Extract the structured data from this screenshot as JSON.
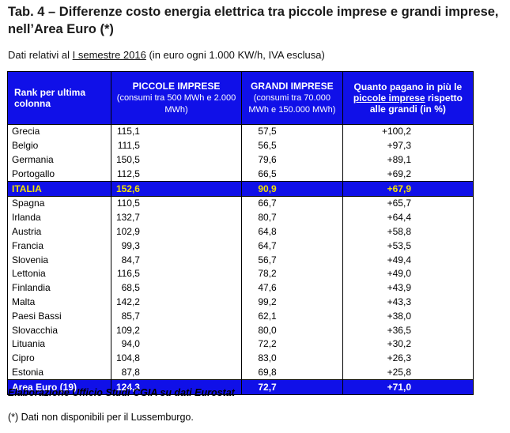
{
  "title": "Tab. 4 – Differenze costo energia elettrica tra piccole imprese e grandi imprese, nell’Area Euro (*)",
  "subtitle": {
    "prefix": "Dati relativi al ",
    "underlined": "I semestre 2016",
    "suffix": " (in euro ogni 1.000 KW/h, IVA esclusa)"
  },
  "table": {
    "headers": {
      "rank": "Rank per ultima colonna",
      "small_title": "PICCOLE IMPRESE",
      "small_sub": "(consumi tra 500 MWh e 2.000 MWh)",
      "large_title": "GRANDI IMPRESE",
      "large_sub": "(consumi tra 70.000 MWh e 150.000 MWh)",
      "diff_pre": "Quanto pagano in più le ",
      "diff_ul": "piccole imprese",
      "diff_post": " rispetto alle grandi (in %)"
    },
    "rows": [
      {
        "country": "Grecia",
        "small": "115,1",
        "large": "57,5",
        "diff": "+100,2"
      },
      {
        "country": "Belgio",
        "small": "111,5",
        "large": "56,5",
        "diff": "+97,3"
      },
      {
        "country": "Germania",
        "small": "150,5",
        "large": "79,6",
        "diff": "+89,1"
      },
      {
        "country": "Portogallo",
        "small": "112,5",
        "large": "66,5",
        "diff": "+69,2"
      },
      {
        "country": "ITALIA",
        "small": "152,6",
        "large": "90,9",
        "diff": "+67,9"
      },
      {
        "country": "Spagna",
        "small": "110,5",
        "large": "66,7",
        "diff": "+65,7"
      },
      {
        "country": "Irlanda",
        "small": "132,7",
        "large": "80,7",
        "diff": "+64,4"
      },
      {
        "country": "Austria",
        "small": "102,9",
        "large": "64,8",
        "diff": "+58,8"
      },
      {
        "country": "Francia",
        "small": "99,3",
        "large": "64,7",
        "diff": "+53,5"
      },
      {
        "country": "Slovenia",
        "small": "84,7",
        "large": "56,7",
        "diff": "+49,4"
      },
      {
        "country": "Lettonia",
        "small": "116,5",
        "large": "78,2",
        "diff": "+49,0"
      },
      {
        "country": "Finlandia",
        "small": "68,5",
        "large": "47,6",
        "diff": "+43,9"
      },
      {
        "country": "Malta",
        "small": "142,2",
        "large": "99,2",
        "diff": "+43,3"
      },
      {
        "country": "Paesi Bassi",
        "small": "85,7",
        "large": "62,1",
        "diff": "+38,0"
      },
      {
        "country": "Slovacchia",
        "small": "109,2",
        "large": "80,0",
        "diff": "+36,5"
      },
      {
        "country": "Lituania",
        "small": "94,0",
        "large": "72,2",
        "diff": "+30,2"
      },
      {
        "country": "Cipro",
        "small": "104,8",
        "large": "83,0",
        "diff": "+26,3"
      },
      {
        "country": "Estonia",
        "small": "87,8",
        "large": "69,8",
        "diff": "+25,8"
      },
      {
        "country": "Area Euro (19)",
        "small": "124,3",
        "large": "72,7",
        "diff": "+71,0"
      }
    ]
  },
  "source": "Elaborazione Ufficio Studi CGIA su dati Eurostat",
  "note": "(*) Dati non disponibili per il Lussemburgo.",
  "colors": {
    "header_bg": "#1010e8",
    "highlight_text": "#f5e400"
  }
}
